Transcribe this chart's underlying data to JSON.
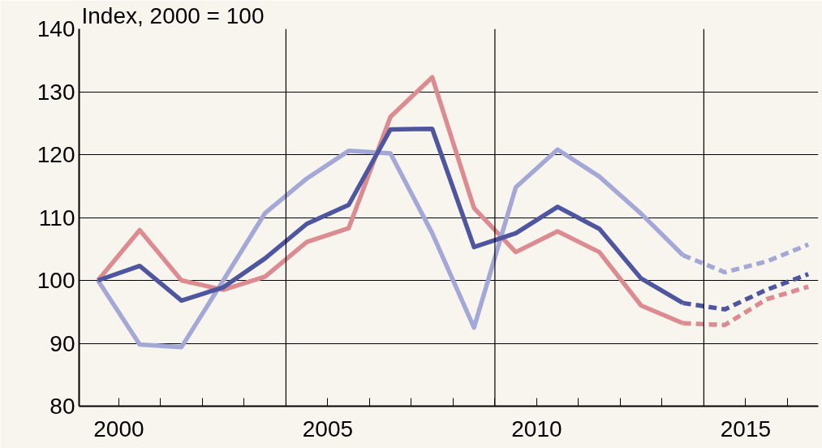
{
  "chart_data": {
    "type": "line",
    "ylabel": "Index, 2000 = 100",
    "xlim": [
      1999.55,
      2017.24
    ],
    "ylim": [
      80,
      140
    ],
    "yticks": [
      80,
      90,
      100,
      110,
      120,
      130,
      140
    ],
    "xticks": [
      {
        "value": 2000.5,
        "label": "2000"
      },
      {
        "value": 2001.5,
        "label": null
      },
      {
        "value": 2002.5,
        "label": null
      },
      {
        "value": 2003.5,
        "label": null
      },
      {
        "value": 2004.5,
        "label": null
      },
      {
        "value": 2005.5,
        "label": "2005"
      },
      {
        "value": 2006.5,
        "label": null
      },
      {
        "value": 2007.5,
        "label": null
      },
      {
        "value": 2008.5,
        "label": null
      },
      {
        "value": 2009.5,
        "label": null
      },
      {
        "value": 2010.5,
        "label": "2010"
      },
      {
        "value": 2011.5,
        "label": null
      },
      {
        "value": 2012.5,
        "label": null
      },
      {
        "value": 2013.5,
        "label": null
      },
      {
        "value": 2014.5,
        "label": null
      },
      {
        "value": 2015.5,
        "label": "2015"
      },
      {
        "value": 2016.5,
        "label": null
      }
    ],
    "grid": "y",
    "ref_lines": [
      {
        "axis": "x",
        "value": 2004.5,
        "color": "#000000"
      },
      {
        "axis": "x",
        "value": 2009.5,
        "color": "#000000"
      },
      {
        "axis": "x",
        "value": 2014.5,
        "color": "#000000"
      }
    ],
    "series": [
      {
        "color": "#dc8c90",
        "line_style": "solid",
        "x": [
          2000,
          2001,
          2002,
          2003,
          2004,
          2005,
          2006,
          2007,
          2008,
          2009,
          2010,
          2011,
          2012,
          2013,
          2014
        ],
        "values": [
          100,
          108,
          100,
          98.5,
          100.6,
          106.1,
          108.3,
          126,
          132.3,
          111.5,
          104.5,
          107.8,
          104.5,
          96,
          93.2
        ]
      },
      {
        "color": "#dc8c90",
        "line_style": "dashed",
        "x": [
          2014,
          2015,
          2016,
          2017
        ],
        "values": [
          93.2,
          92.9,
          97,
          99
        ]
      },
      {
        "color": "#a4a8d6",
        "line_style": "solid",
        "x": [
          2000,
          2001,
          2002,
          2003,
          2004,
          2005,
          2006,
          2007,
          2008,
          2009,
          2010,
          2011,
          2012,
          2013,
          2014
        ],
        "values": [
          100,
          89.8,
          89.4,
          100,
          110.7,
          116.2,
          120.6,
          120.2,
          107.5,
          92.5,
          114.8,
          120.8,
          116.5,
          110.6,
          104
        ]
      },
      {
        "color": "#a4a8d6",
        "line_style": "dashed",
        "x": [
          2014,
          2015,
          2016,
          2017
        ],
        "values": [
          104,
          101.3,
          103,
          105.7
        ]
      },
      {
        "color": "#4f56a0",
        "line_style": "solid",
        "x": [
          2000,
          2001,
          2002,
          2003,
          2004,
          2005,
          2006,
          2007,
          2008,
          2009,
          2010,
          2011,
          2012,
          2013,
          2014
        ],
        "values": [
          100,
          102.3,
          96.8,
          98.9,
          103.5,
          109,
          112,
          124,
          124.1,
          105.3,
          107.5,
          111.7,
          108.2,
          100.3,
          96.4
        ]
      },
      {
        "color": "#4f56a0",
        "line_style": "dashed",
        "x": [
          2014,
          2015,
          2016,
          2017
        ],
        "values": [
          96.4,
          95.4,
          98.5,
          101
        ]
      }
    ]
  }
}
